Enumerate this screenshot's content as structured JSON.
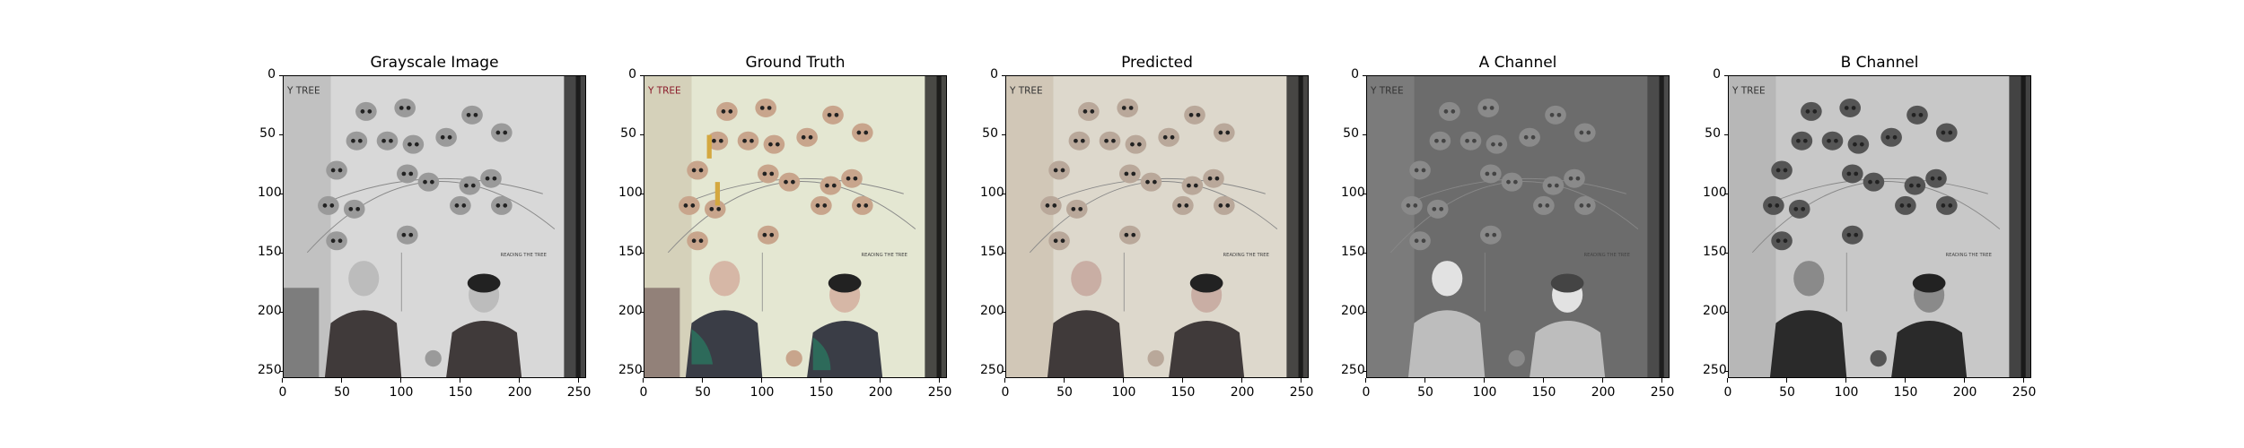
{
  "panels": [
    {
      "title": "Grayscale Image",
      "kind": "gray"
    },
    {
      "title": "Ground Truth",
      "kind": "color"
    },
    {
      "title": "Predicted",
      "kind": "pred"
    },
    {
      "title": "A Channel",
      "kind": "a"
    },
    {
      "title": "B Channel",
      "kind": "b"
    }
  ],
  "xticks": [
    "0",
    "50",
    "100",
    "150",
    "200",
    "250"
  ],
  "yticks": [
    "0",
    "50",
    "100",
    "150",
    "200",
    "250"
  ],
  "image_text": {
    "tree_label": "Y TREE",
    "reading_label": "READING THE TREE"
  }
}
